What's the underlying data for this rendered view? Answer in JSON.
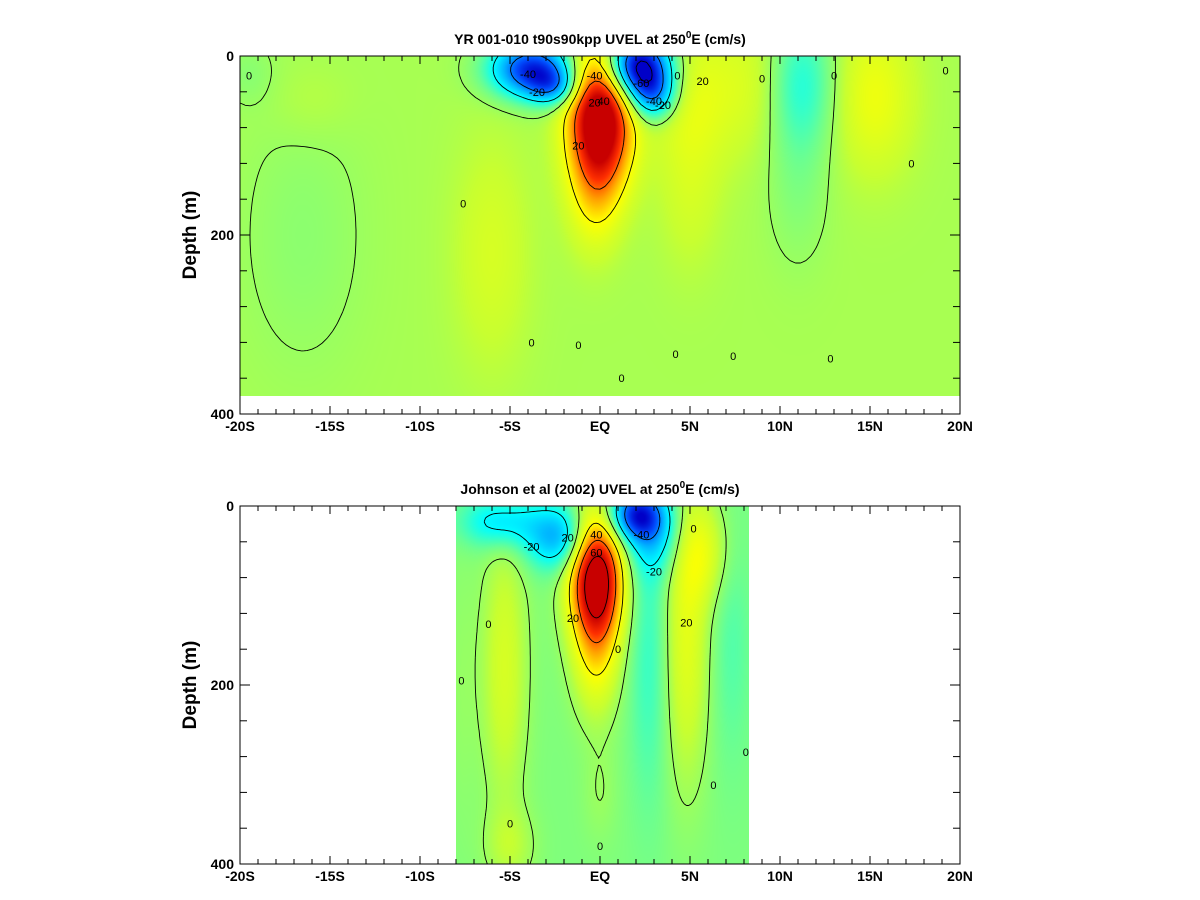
{
  "chart_data": [
    {
      "type": "heatmap",
      "title": {
        "main": "YR 001-010 t90s90kpp UVEL at 250",
        "sup": "0",
        "end": "E (cm/s)"
      },
      "ylabel": "Depth (m)",
      "xlabel": "",
      "xlim": [
        -20,
        20
      ],
      "ylim": [
        400,
        0
      ],
      "y_data_bottom": 380,
      "x_data_range": [
        -20,
        20
      ],
      "x_ticks": [
        {
          "v": -20,
          "label": "-20S"
        },
        {
          "v": -15,
          "label": "-15S"
        },
        {
          "v": -10,
          "label": "-10S"
        },
        {
          "v": -5,
          "label": "-5S"
        },
        {
          "v": 0,
          "label": "EQ"
        },
        {
          "v": 5,
          "label": "5N"
        },
        {
          "v": 10,
          "label": "10N"
        },
        {
          "v": 15,
          "label": "15N"
        },
        {
          "v": 20,
          "label": "20N"
        }
      ],
      "y_ticks": [
        {
          "v": 0,
          "label": "0"
        },
        {
          "v": 200,
          "label": "200"
        },
        {
          "v": 400,
          "label": "400"
        }
      ],
      "color_scale": {
        "min": -60,
        "max": 60,
        "stops": [
          "#0000c8",
          "#0050ff",
          "#00b0ff",
          "#00ffff",
          "#6cff90",
          "#c8ff30",
          "#ffff00",
          "#ffa000",
          "#ff3000",
          "#c80000"
        ]
      },
      "background_value": 2,
      "features": [
        {
          "x": 0,
          "y": 70,
          "sx": 1.2,
          "sy": 55,
          "value": 75
        },
        {
          "x": -0.3,
          "y": 160,
          "sx": 1.0,
          "sy": 45,
          "value": 12
        },
        {
          "x": -3.8,
          "y": 15,
          "sx": 1.6,
          "sy": 22,
          "value": -55
        },
        {
          "x": -2.5,
          "y": 35,
          "sx": 1.0,
          "sy": 15,
          "value": -25
        },
        {
          "x": 2.1,
          "y": 12,
          "sx": 1.3,
          "sy": 25,
          "value": -70
        },
        {
          "x": 3.0,
          "y": 45,
          "sx": 0.9,
          "sy": 20,
          "value": -30
        },
        {
          "x": 5.2,
          "y": 45,
          "sx": 1.6,
          "sy": 60,
          "value": 12
        },
        {
          "x": 5.0,
          "y": 160,
          "sx": 1.2,
          "sy": 60,
          "value": 6
        },
        {
          "x": 8.5,
          "y": 30,
          "sx": 1.4,
          "sy": 55,
          "value": 8
        },
        {
          "x": 11.2,
          "y": 30,
          "sx": 1.4,
          "sy": 55,
          "value": -18
        },
        {
          "x": 11.0,
          "y": 150,
          "sx": 1.2,
          "sy": 60,
          "value": -5
        },
        {
          "x": 15.2,
          "y": 45,
          "sx": 1.6,
          "sy": 60,
          "value": 14
        },
        {
          "x": -6.0,
          "y": 220,
          "sx": 1.5,
          "sy": 90,
          "value": 8
        },
        {
          "x": -16.5,
          "y": 200,
          "sx": 2.5,
          "sy": 110,
          "value": -4
        },
        {
          "x": -16.0,
          "y": 50,
          "sx": 1.6,
          "sy": 30,
          "value": 3
        },
        {
          "x": -19.5,
          "y": 20,
          "sx": 1.0,
          "sy": 25,
          "value": -4
        }
      ],
      "contour_labels": [
        {
          "x": -19.5,
          "y": 22,
          "label": "0"
        },
        {
          "x": -4.0,
          "y": 20,
          "label": "-40"
        },
        {
          "x": -3.5,
          "y": 40,
          "label": "-20"
        },
        {
          "x": -0.3,
          "y": 22,
          "label": "-40"
        },
        {
          "x": 0.2,
          "y": 50,
          "label": "40"
        },
        {
          "x": -0.3,
          "y": 52,
          "label": "20"
        },
        {
          "x": 2.3,
          "y": 30,
          "label": "-60"
        },
        {
          "x": 3.0,
          "y": 50,
          "label": "-40"
        },
        {
          "x": 3.5,
          "y": 55,
          "label": "-20"
        },
        {
          "x": -1.2,
          "y": 100,
          "label": "20"
        },
        {
          "x": 4.3,
          "y": 22,
          "label": "0"
        },
        {
          "x": 5.7,
          "y": 28,
          "label": "20"
        },
        {
          "x": 9.0,
          "y": 25,
          "label": "0"
        },
        {
          "x": 13.0,
          "y": 22,
          "label": "0"
        },
        {
          "x": 19.2,
          "y": 16,
          "label": "0"
        },
        {
          "x": 17.3,
          "y": 120,
          "label": "0"
        },
        {
          "x": -7.6,
          "y": 165,
          "label": "0"
        },
        {
          "x": -3.8,
          "y": 320,
          "label": "0"
        },
        {
          "x": -1.2,
          "y": 323,
          "label": "0"
        },
        {
          "x": 1.2,
          "y": 360,
          "label": "0"
        },
        {
          "x": 4.2,
          "y": 333,
          "label": "0"
        },
        {
          "x": 7.4,
          "y": 335,
          "label": "0"
        },
        {
          "x": 12.8,
          "y": 338,
          "label": "0"
        }
      ],
      "contour_levels": [
        -60,
        -40,
        -20,
        0,
        20,
        40
      ]
    },
    {
      "type": "heatmap",
      "title": {
        "main": "Johnson et al (2002) UVEL at 250",
        "sup": "0",
        "end": "E (cm/s)"
      },
      "ylabel": "Depth (m)",
      "xlabel": "",
      "xlim": [
        -20,
        20
      ],
      "ylim": [
        400,
        0
      ],
      "y_data_bottom": 400,
      "x_data_range": [
        -8,
        8.3
      ],
      "x_ticks": [
        {
          "v": -20,
          "label": "-20S"
        },
        {
          "v": -15,
          "label": "-15S"
        },
        {
          "v": -10,
          "label": "-10S"
        },
        {
          "v": -5,
          "label": "-5S"
        },
        {
          "v": 0,
          "label": "EQ"
        },
        {
          "v": 5,
          "label": "5N"
        },
        {
          "v": 10,
          "label": "10N"
        },
        {
          "v": 15,
          "label": "15N"
        },
        {
          "v": 20,
          "label": "20N"
        }
      ],
      "y_ticks": [
        {
          "v": 0,
          "label": "0"
        },
        {
          "v": 200,
          "label": "200"
        },
        {
          "v": 400,
          "label": "400"
        }
      ],
      "color_scale": {
        "min": -60,
        "max": 60,
        "stops": [
          "#0000c8",
          "#0050ff",
          "#00b0ff",
          "#00ffff",
          "#6cff90",
          "#c8ff30",
          "#ffff00",
          "#ffa000",
          "#ff3000",
          "#c80000"
        ]
      },
      "background_value": -4,
      "features": [
        {
          "x": -0.2,
          "y": 80,
          "sx": 1.0,
          "sy": 50,
          "value": 78
        },
        {
          "x": -0.2,
          "y": 170,
          "sx": 0.9,
          "sy": 50,
          "value": 18
        },
        {
          "x": 0,
          "y": 320,
          "sx": 0.7,
          "sy": 40,
          "value": 4
        },
        {
          "x": -2.2,
          "y": 35,
          "sx": 1.3,
          "sy": 25,
          "value": -30
        },
        {
          "x": -5.5,
          "y": 18,
          "sx": 1.5,
          "sy": 20,
          "value": -22
        },
        {
          "x": -5.3,
          "y": 180,
          "sx": 0.9,
          "sy": 110,
          "value": 14
        },
        {
          "x": -5.0,
          "y": 380,
          "sx": 1.0,
          "sy": 30,
          "value": 8
        },
        {
          "x": 2.0,
          "y": 10,
          "sx": 1.1,
          "sy": 20,
          "value": -45
        },
        {
          "x": 3.0,
          "y": 35,
          "sx": 1.2,
          "sy": 30,
          "value": -18
        },
        {
          "x": 2.8,
          "y": 160,
          "sx": 0.8,
          "sy": 120,
          "value": -10
        },
        {
          "x": 4.8,
          "y": 150,
          "sx": 0.9,
          "sy": 110,
          "value": 17
        },
        {
          "x": 5.7,
          "y": 50,
          "sx": 1.0,
          "sy": 40,
          "value": 16
        },
        {
          "x": 7.3,
          "y": 150,
          "sx": 0.8,
          "sy": 100,
          "value": -6
        },
        {
          "x": -7.7,
          "y": 200,
          "sx": 0.6,
          "sy": 120,
          "value": 3
        }
      ],
      "contour_labels": [
        {
          "x": -3.8,
          "y": 45,
          "label": "-20"
        },
        {
          "x": -1.8,
          "y": 35,
          "label": "20"
        },
        {
          "x": -0.2,
          "y": 32,
          "label": "40"
        },
        {
          "x": -0.2,
          "y": 52,
          "label": "60"
        },
        {
          "x": 2.3,
          "y": 32,
          "label": "-40"
        },
        {
          "x": 3.0,
          "y": 73,
          "label": "-20"
        },
        {
          "x": -1.5,
          "y": 125,
          "label": "20"
        },
        {
          "x": 1.0,
          "y": 160,
          "label": "0"
        },
        {
          "x": 4.8,
          "y": 130,
          "label": "20"
        },
        {
          "x": 5.2,
          "y": 25,
          "label": "0"
        },
        {
          "x": -6.2,
          "y": 132,
          "label": "0"
        },
        {
          "x": -7.7,
          "y": 195,
          "label": "0"
        },
        {
          "x": -5.0,
          "y": 355,
          "label": "0"
        },
        {
          "x": 0,
          "y": 380,
          "label": "0"
        },
        {
          "x": 6.3,
          "y": 312,
          "label": "0"
        },
        {
          "x": 8.1,
          "y": 275,
          "label": "0"
        }
      ],
      "contour_levels": [
        -40,
        -20,
        0,
        20,
        40,
        60
      ]
    }
  ]
}
